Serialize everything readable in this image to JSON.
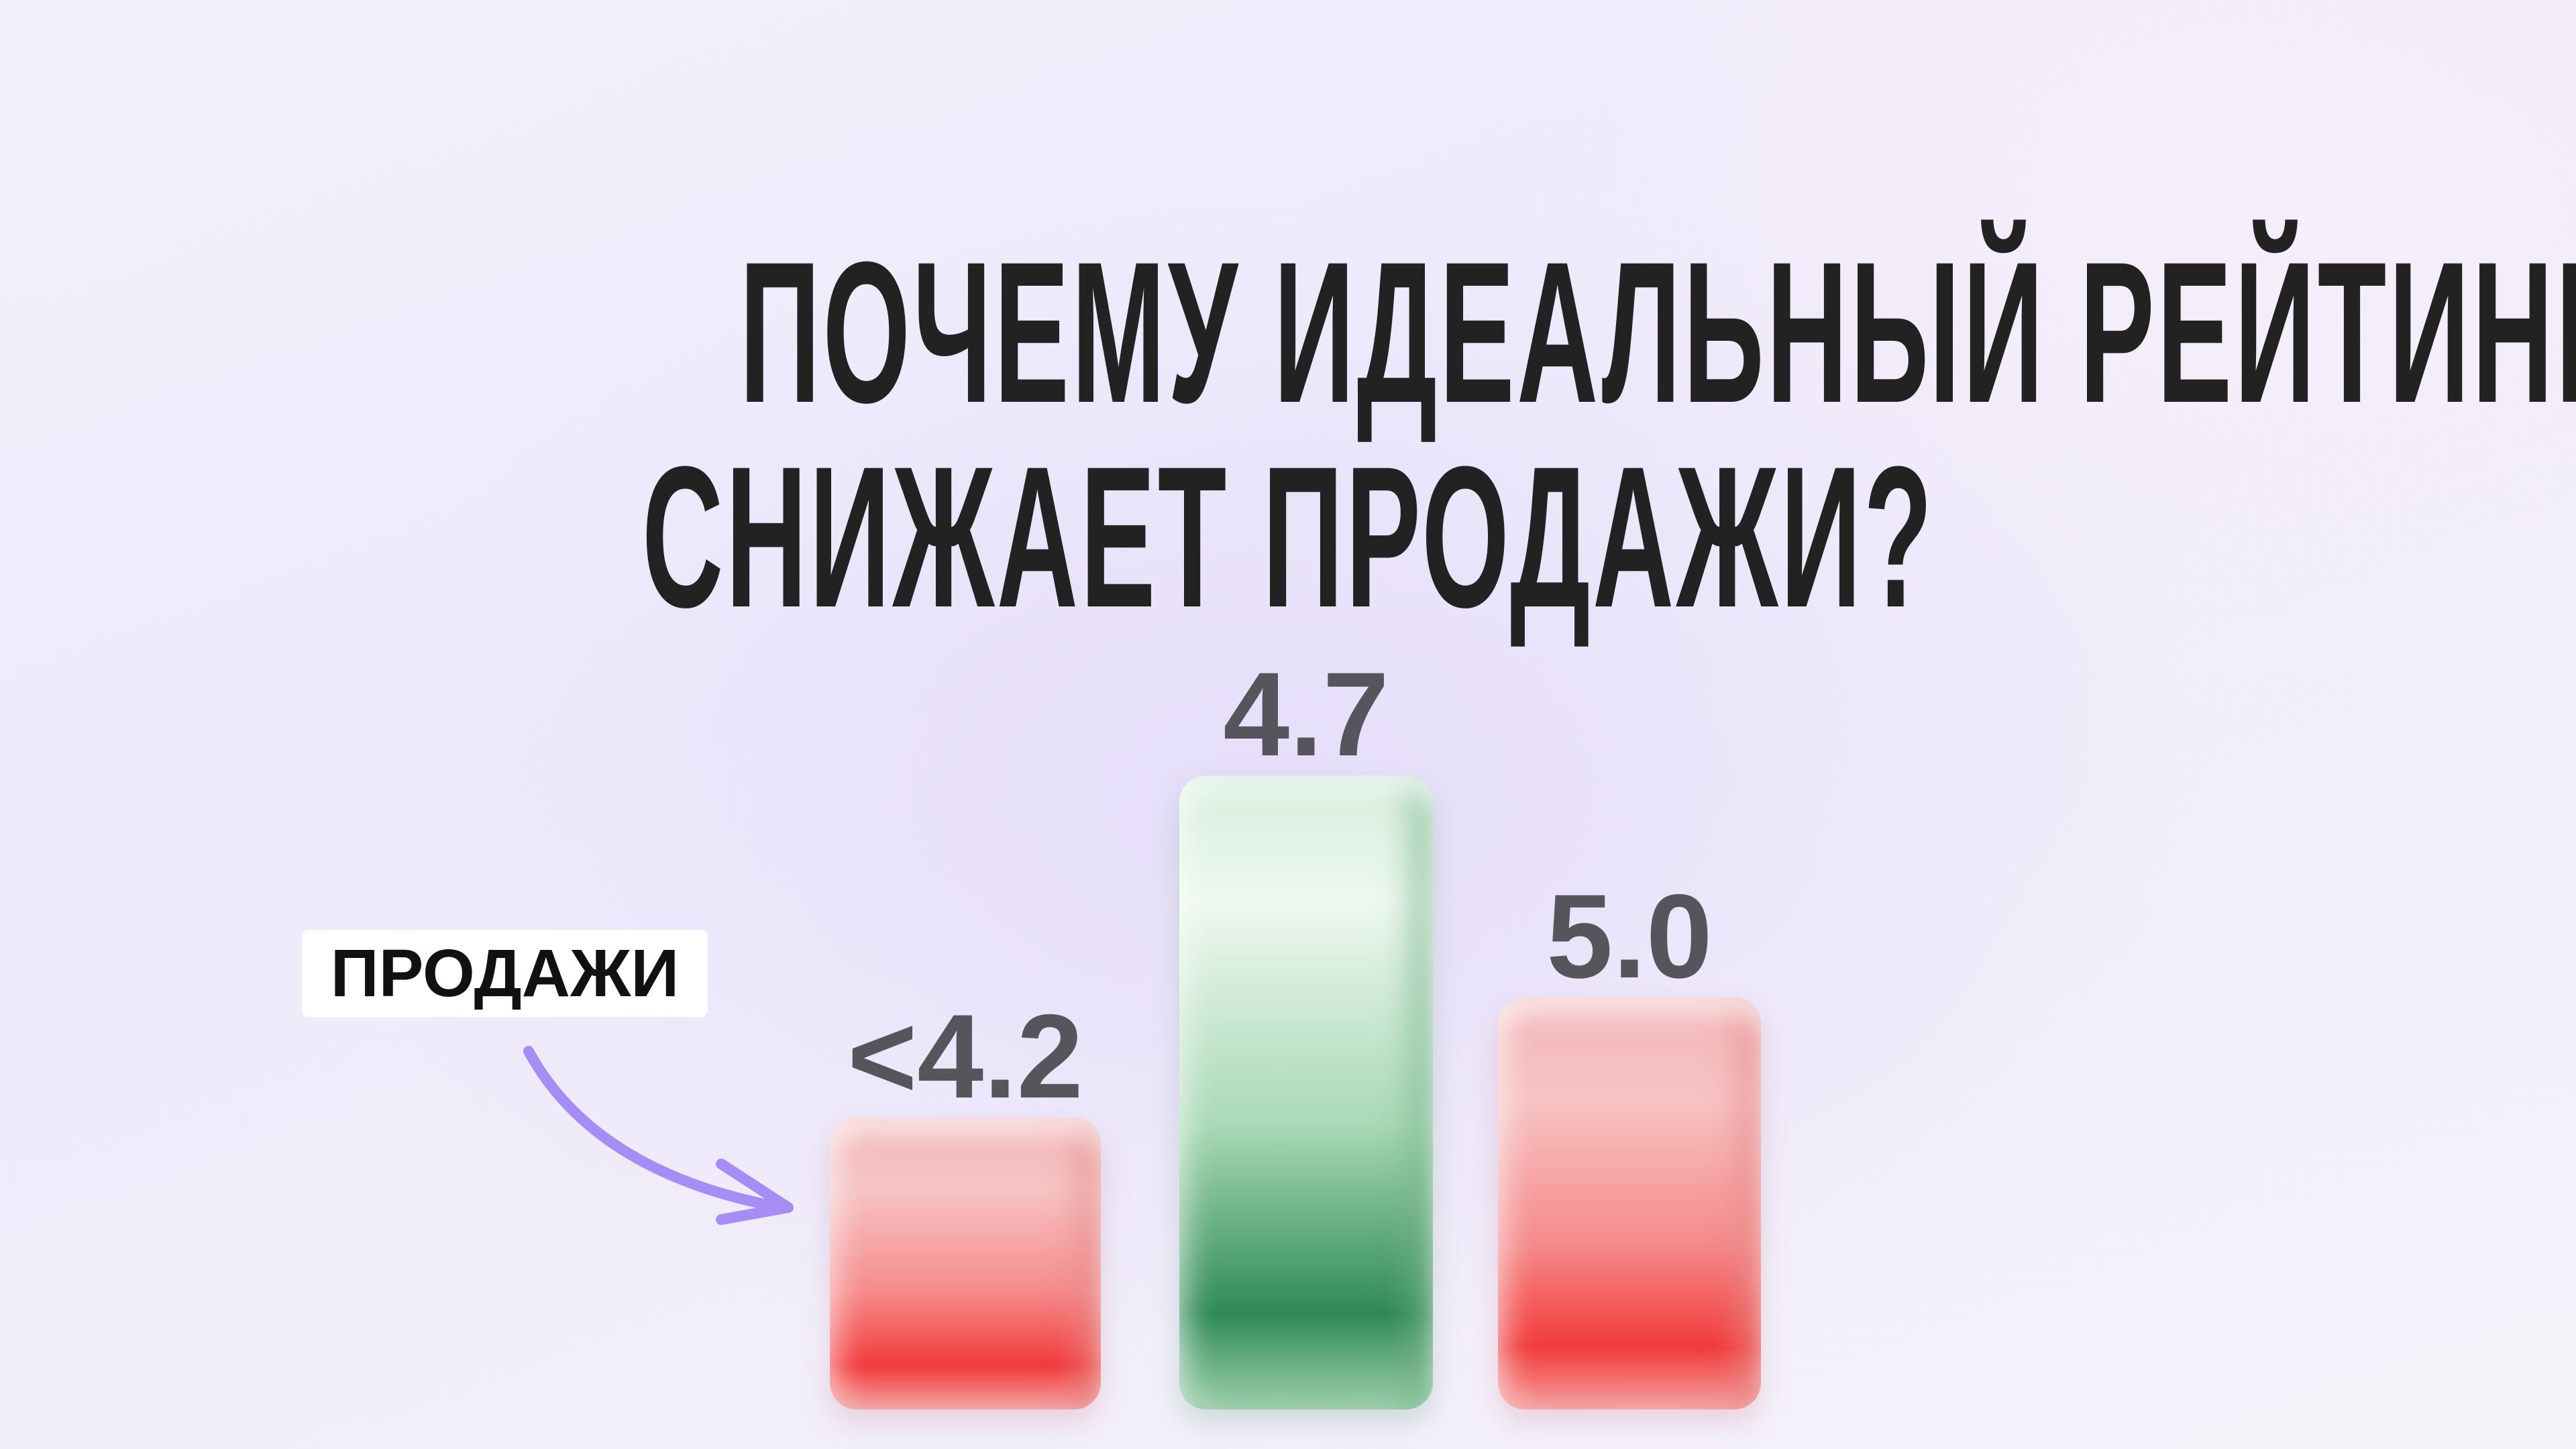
{
  "title": {
    "line1": "ПОЧЕМУ ИДЕАЛЬНЫЙ РЕЙТИНГ",
    "line2": "СНИЖАЕТ ПРОДАЖИ?"
  },
  "annotation": {
    "label": "ПРОДАЖИ",
    "arrow_color": "#a68cf5"
  },
  "chart_data": {
    "type": "bar",
    "title": "",
    "xlabel": "",
    "ylabel": "ПРОДАЖИ",
    "categories": [
      "<4.2",
      "4.7",
      "5.0"
    ],
    "values": [
      46,
      100,
      65
    ],
    "ylim": [
      0,
      100
    ],
    "colors": [
      "#f23a3a",
      "#2f8a55",
      "#f23a3a"
    ],
    "grid": false,
    "legend": "none"
  }
}
